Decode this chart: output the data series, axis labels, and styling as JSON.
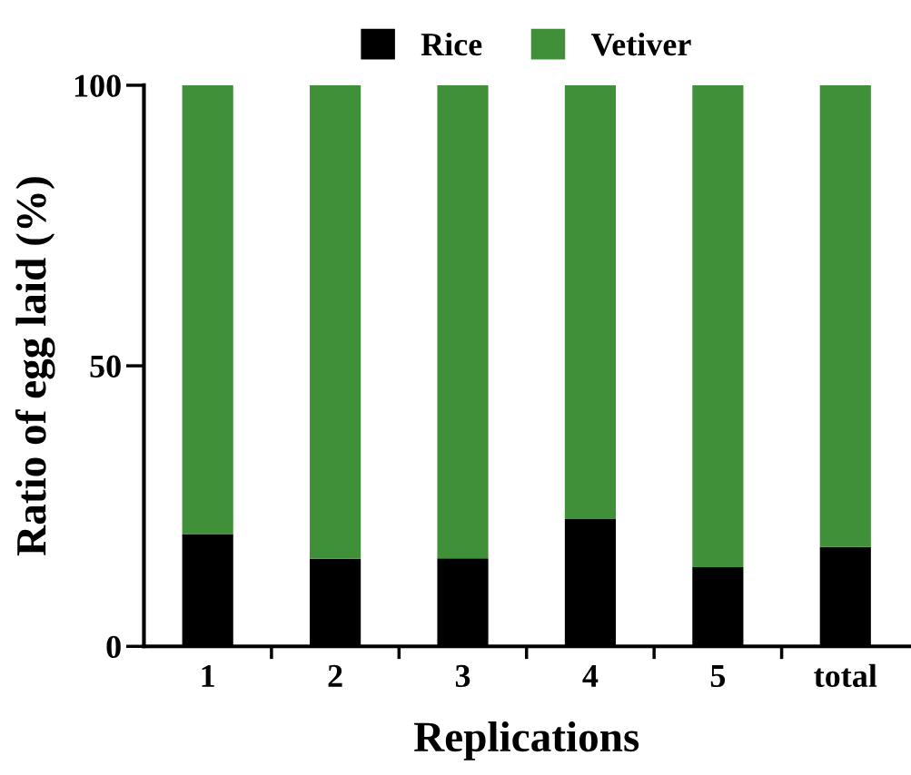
{
  "chart_data": {
    "type": "bar",
    "stacked": true,
    "xlabel": "Replications",
    "ylabel": "Ratio of egg laid (%)",
    "categories": [
      "1",
      "2",
      "3",
      "4",
      "5",
      "total"
    ],
    "series": [
      {
        "name": "Rice",
        "color": "#000000",
        "values": [
          20.0,
          15.6,
          15.7,
          22.7,
          14.1,
          17.7
        ]
      },
      {
        "name": "Vetiver",
        "color": "#40903a",
        "values": [
          80.0,
          84.4,
          84.3,
          77.3,
          85.9,
          82.3
        ]
      }
    ],
    "ylim": [
      0,
      100
    ],
    "yticks": [
      0,
      50,
      100
    ],
    "grid": false,
    "legend": "top"
  }
}
